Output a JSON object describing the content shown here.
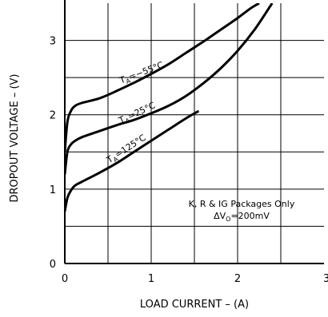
{
  "chart_data": {
    "type": "line",
    "title": "",
    "xlabel": "LOAD CURRENT – (A)",
    "ylabel": "DROPOUT VOLTAGE – (V)",
    "xlim": [
      0,
      3
    ],
    "ylim": [
      0,
      3.5
    ],
    "x_ticks": [
      "0",
      "1",
      "2",
      "3"
    ],
    "y_ticks": [
      "0",
      "1",
      "2",
      "3"
    ],
    "x_minor_step": 0.5,
    "y_minor_step": 0.5,
    "grid": true,
    "series": [
      {
        "name": "TA=−55°C",
        "label_main": "T",
        "label_sub": "A",
        "label_rest": "=−55°C",
        "x": [
          0.0,
          0.03,
          0.07,
          0.12,
          0.2,
          0.4,
          0.6,
          0.8,
          1.0,
          1.2,
          1.4,
          1.6,
          1.8,
          2.0,
          2.15,
          2.25
        ],
        "y": [
          1.5,
          1.9,
          2.05,
          2.12,
          2.16,
          2.22,
          2.32,
          2.43,
          2.55,
          2.68,
          2.83,
          2.98,
          3.14,
          3.3,
          3.43,
          3.5
        ]
      },
      {
        "name": "TA=25°C",
        "label_main": "T",
        "label_sub": "A",
        "label_rest": "=25°C",
        "x": [
          0.0,
          0.03,
          0.07,
          0.12,
          0.2,
          0.4,
          0.6,
          0.8,
          1.0,
          1.2,
          1.4,
          1.6,
          1.8,
          2.0,
          2.2,
          2.4
        ],
        "y": [
          1.2,
          1.5,
          1.6,
          1.65,
          1.7,
          1.78,
          1.86,
          1.93,
          2.02,
          2.12,
          2.25,
          2.42,
          2.62,
          2.86,
          3.15,
          3.5
        ]
      },
      {
        "name": "TA=125°C",
        "label_main": "T",
        "label_sub": "A",
        "label_rest": "=125°C",
        "x": [
          0.0,
          0.03,
          0.07,
          0.12,
          0.2,
          0.4,
          0.6,
          0.8,
          1.0,
          1.2,
          1.4,
          1.55
        ],
        "y": [
          0.7,
          0.88,
          0.98,
          1.05,
          1.1,
          1.22,
          1.35,
          1.5,
          1.65,
          1.8,
          1.95,
          2.05
        ]
      }
    ],
    "annotation": {
      "line1": "K, R & IG Packages Only",
      "line2_pre": "ΔV",
      "line2_sub": "O",
      "line2_post": "=200mV"
    }
  }
}
